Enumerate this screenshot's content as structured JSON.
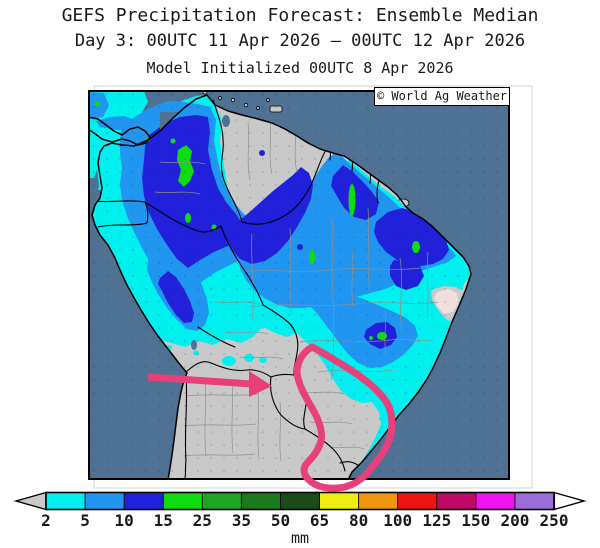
{
  "header": {
    "title": "GEFS Precipitation Forecast: Ensemble Median",
    "subtitle": "Day 3: 00UTC 11 Apr 2026 — 00UTC 12 Apr 2026",
    "init_line": "Model Initialized 00UTC 8 Apr 2026"
  },
  "map": {
    "credit": "© World Ag Weather"
  },
  "palette": {
    "ocean": "#4F7294",
    "land": "#C9C9C9",
    "trace": "#F2DEDC",
    "annotation": "#E8407A"
  },
  "colorbar": {
    "unit": "mm",
    "tick_labels": [
      "2",
      "5",
      "10",
      "15",
      "25",
      "35",
      "50",
      "65",
      "80",
      "100",
      "125",
      "150",
      "200",
      "250"
    ],
    "segment_colors": [
      "#00EFEF",
      "#2196F0",
      "#2121DC",
      "#0FDC0F",
      "#21A421",
      "#1B7A1B",
      "#194C19",
      "#EFEF0F",
      "#F0960F",
      "#EF1414",
      "#BE0A64",
      "#EF14EF",
      "#9A6ED6"
    ],
    "under_color": "#C9C9C9",
    "over_color": "#FFFFFF"
  }
}
